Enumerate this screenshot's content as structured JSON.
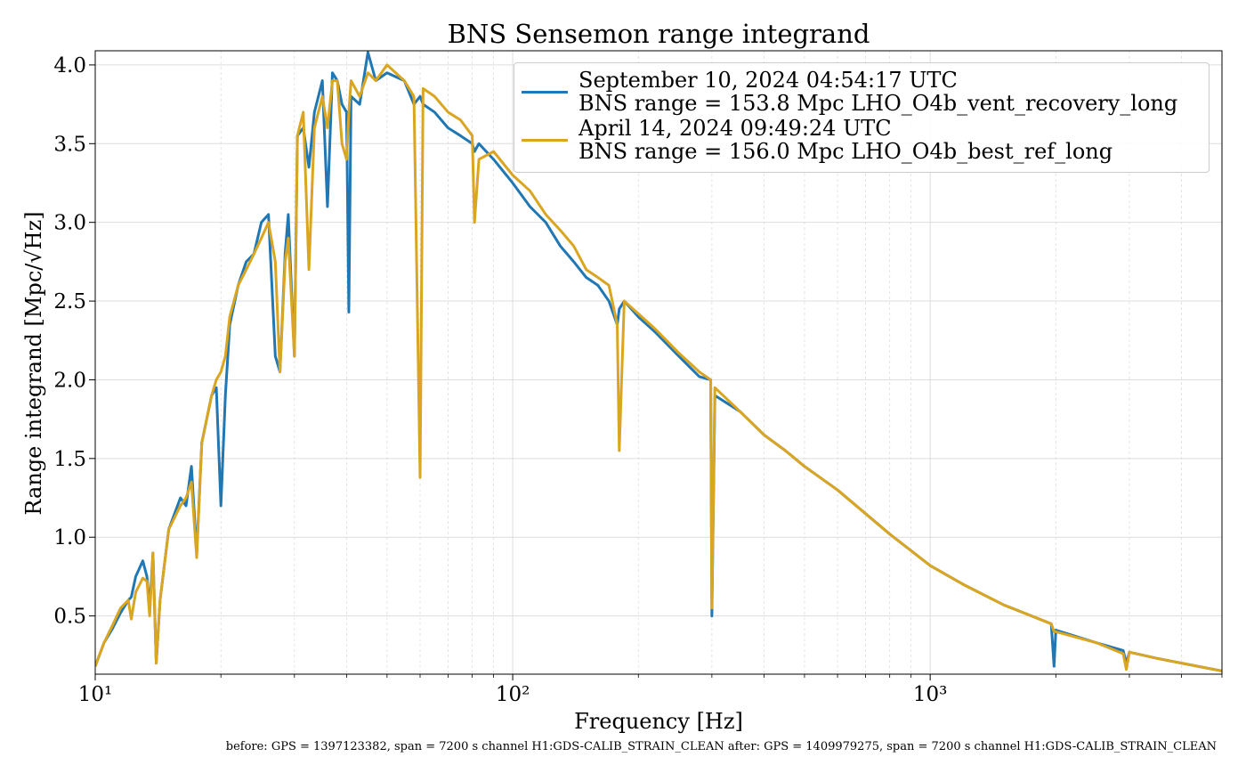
{
  "chart_data": {
    "type": "line",
    "title": "BNS Sensemon range integrand",
    "xlabel": "Frequency [Hz]",
    "ylabel": "Range integrand [Mpc/√Hz]",
    "footnote": "before: GPS = 1397123382, span = 7200 s channel H1:GDS-CALIB_STRAIN_CLEAN after: GPS = 1409979275, span = 7200 s channel H1:GDS-CALIB_STRAIN_CLEAN",
    "xscale": "log",
    "grid": true,
    "legend": "upper right",
    "xlim": [
      10,
      5000
    ],
    "ylim": [
      0.13,
      4.09
    ],
    "xticks": [
      {
        "value": 10,
        "label": "10¹"
      },
      {
        "value": 100,
        "label": "10²"
      },
      {
        "value": 1000,
        "label": "10³"
      }
    ],
    "xminorticks": [
      20,
      30,
      40,
      50,
      60,
      70,
      80,
      90,
      200,
      300,
      400,
      500,
      600,
      700,
      800,
      900,
      2000,
      3000,
      4000,
      5000
    ],
    "yticks": [
      0.5,
      {
        "value": 1,
        "label": "1.0"
      },
      1.5,
      {
        "value": 2,
        "label": "2.0"
      },
      2.5,
      {
        "value": 3,
        "label": "3.0"
      },
      3.5,
      {
        "value": 4,
        "label": "4.0"
      }
    ],
    "x": [
      10,
      10.5,
      11,
      11.5,
      12,
      12.2,
      12.5,
      13,
      13.3,
      13.5,
      13.75,
      14,
      14.3,
      15,
      16,
      16.5,
      17,
      17.5,
      18,
      19,
      19.5,
      20,
      20.5,
      21,
      22,
      23,
      24,
      25,
      26,
      27,
      27.7,
      28.5,
      29,
      30,
      30.5,
      31.5,
      32.5,
      33.5,
      35,
      36,
      37,
      38,
      39,
      40,
      40.5,
      41,
      43,
      45,
      47,
      50,
      55,
      58,
      60,
      61,
      65,
      70,
      75,
      80,
      81,
      83,
      90,
      100,
      110,
      120,
      130,
      140,
      150,
      160,
      170,
      178,
      180,
      185,
      200,
      220,
      250,
      280,
      298,
      300,
      305,
      350,
      400,
      450,
      500,
      600,
      700,
      800,
      1000,
      1200,
      1500,
      1950,
      1980,
      2000,
      2500,
      2900,
      2950,
      3000,
      3500,
      4000,
      5000
    ],
    "series": [
      {
        "name": "September 10, 2024 04:54:17 UTC\nBNS range = 153.8 Mpc LHO_O4b_vent_recovery_long",
        "color": "#1f77b4",
        "values": [
          0.18,
          0.33,
          0.42,
          0.52,
          0.6,
          0.62,
          0.75,
          0.85,
          0.75,
          0.55,
          0.9,
          0.2,
          0.6,
          1.05,
          1.25,
          1.2,
          1.45,
          0.9,
          1.6,
          1.9,
          1.95,
          1.2,
          1.9,
          2.35,
          2.6,
          2.75,
          2.8,
          3.0,
          3.05,
          2.15,
          2.05,
          2.8,
          3.05,
          2.15,
          3.55,
          3.6,
          3.35,
          3.7,
          3.9,
          3.1,
          3.95,
          3.9,
          3.75,
          3.7,
          2.43,
          3.8,
          3.75,
          4.08,
          3.9,
          3.95,
          3.9,
          3.75,
          3.8,
          3.75,
          3.7,
          3.6,
          3.55,
          3.5,
          3.45,
          3.5,
          3.4,
          3.25,
          3.1,
          3.0,
          2.85,
          2.75,
          2.65,
          2.6,
          2.5,
          2.35,
          2.45,
          2.5,
          2.4,
          2.3,
          2.15,
          2.02,
          2.0,
          0.5,
          1.9,
          1.8,
          1.65,
          1.55,
          1.45,
          1.3,
          1.15,
          1.02,
          0.82,
          0.7,
          0.57,
          0.45,
          0.18,
          0.41,
          0.33,
          0.28,
          0.2,
          0.27,
          0.23,
          0.2,
          0.15
        ]
      },
      {
        "name": "April 14, 2024 09:49:24 UTC\nBNS range = 156.0 Mpc LHO_O4b_best_ref_long",
        "color": "#daa520",
        "values": [
          0.18,
          0.33,
          0.44,
          0.55,
          0.6,
          0.48,
          0.65,
          0.74,
          0.72,
          0.5,
          0.9,
          0.2,
          0.6,
          1.05,
          1.2,
          1.25,
          1.35,
          0.87,
          1.6,
          1.9,
          2.0,
          2.05,
          2.15,
          2.4,
          2.6,
          2.7,
          2.8,
          2.9,
          3.0,
          2.75,
          2.05,
          2.75,
          2.9,
          2.15,
          3.55,
          3.7,
          2.7,
          3.6,
          3.8,
          3.6,
          3.9,
          3.9,
          3.5,
          3.4,
          3.7,
          3.9,
          3.8,
          3.95,
          3.9,
          4.0,
          3.9,
          3.8,
          1.38,
          3.85,
          3.8,
          3.7,
          3.65,
          3.55,
          3.0,
          3.4,
          3.45,
          3.3,
          3.2,
          3.05,
          2.95,
          2.85,
          2.7,
          2.65,
          2.6,
          2.35,
          1.55,
          2.5,
          2.42,
          2.32,
          2.17,
          2.05,
          2.0,
          0.55,
          1.95,
          1.8,
          1.65,
          1.55,
          1.45,
          1.3,
          1.15,
          1.02,
          0.82,
          0.7,
          0.57,
          0.45,
          0.4,
          0.4,
          0.33,
          0.26,
          0.16,
          0.27,
          0.23,
          0.2,
          0.15
        ]
      }
    ]
  }
}
